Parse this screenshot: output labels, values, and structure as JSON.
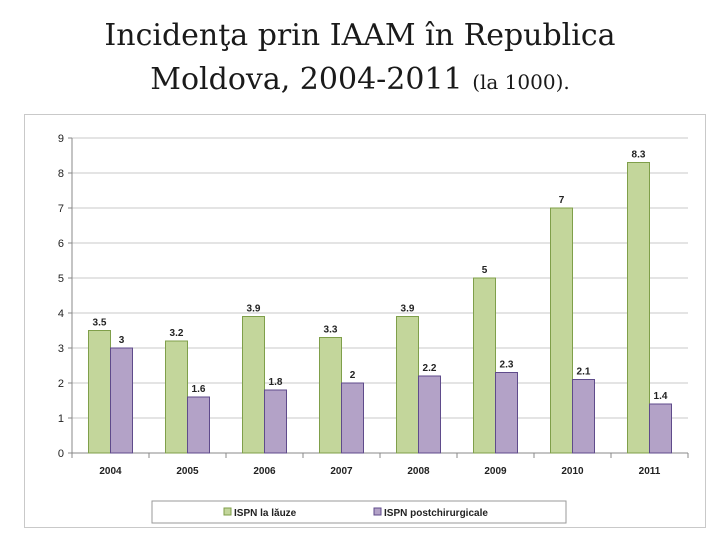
{
  "slide": {
    "title_line1": "Incidenţa prin IAAM în Republica",
    "title_line2_main": "Moldova, 2004-2011 ",
    "title_line2_small": "(la 1000)."
  },
  "chart_data": {
    "type": "bar",
    "categories": [
      "2004",
      "2005",
      "2006",
      "2007",
      "2008",
      "2009",
      "2010",
      "2011"
    ],
    "series": [
      {
        "name": "ISPN la lăuze",
        "values": [
          3.5,
          3.2,
          3.9,
          3.3,
          3.9,
          5,
          7,
          8.3
        ],
        "color": "#c3d69b",
        "stroke": "#7f9f4a"
      },
      {
        "name": "ISPN postchirurgicale",
        "values": [
          3,
          1.6,
          1.8,
          2,
          2.2,
          2.3,
          2.1,
          1.4
        ],
        "color": "#b3a2c7",
        "stroke": "#5f4b8b"
      }
    ],
    "data_labels": [
      [
        "3.5",
        "3.2",
        "3.9",
        "3.3",
        "3.9",
        "5",
        "7",
        "8.3"
      ],
      [
        "3",
        "1.6",
        "1.8",
        "2",
        "2.2",
        "2.3",
        "2.1",
        "1.4"
      ]
    ],
    "yticks": [
      "0",
      "1",
      "2",
      "3",
      "4",
      "5",
      "6",
      "7",
      "8",
      "9"
    ],
    "ylim": [
      0,
      9
    ],
    "grid": true,
    "legend_position": "bottom"
  }
}
